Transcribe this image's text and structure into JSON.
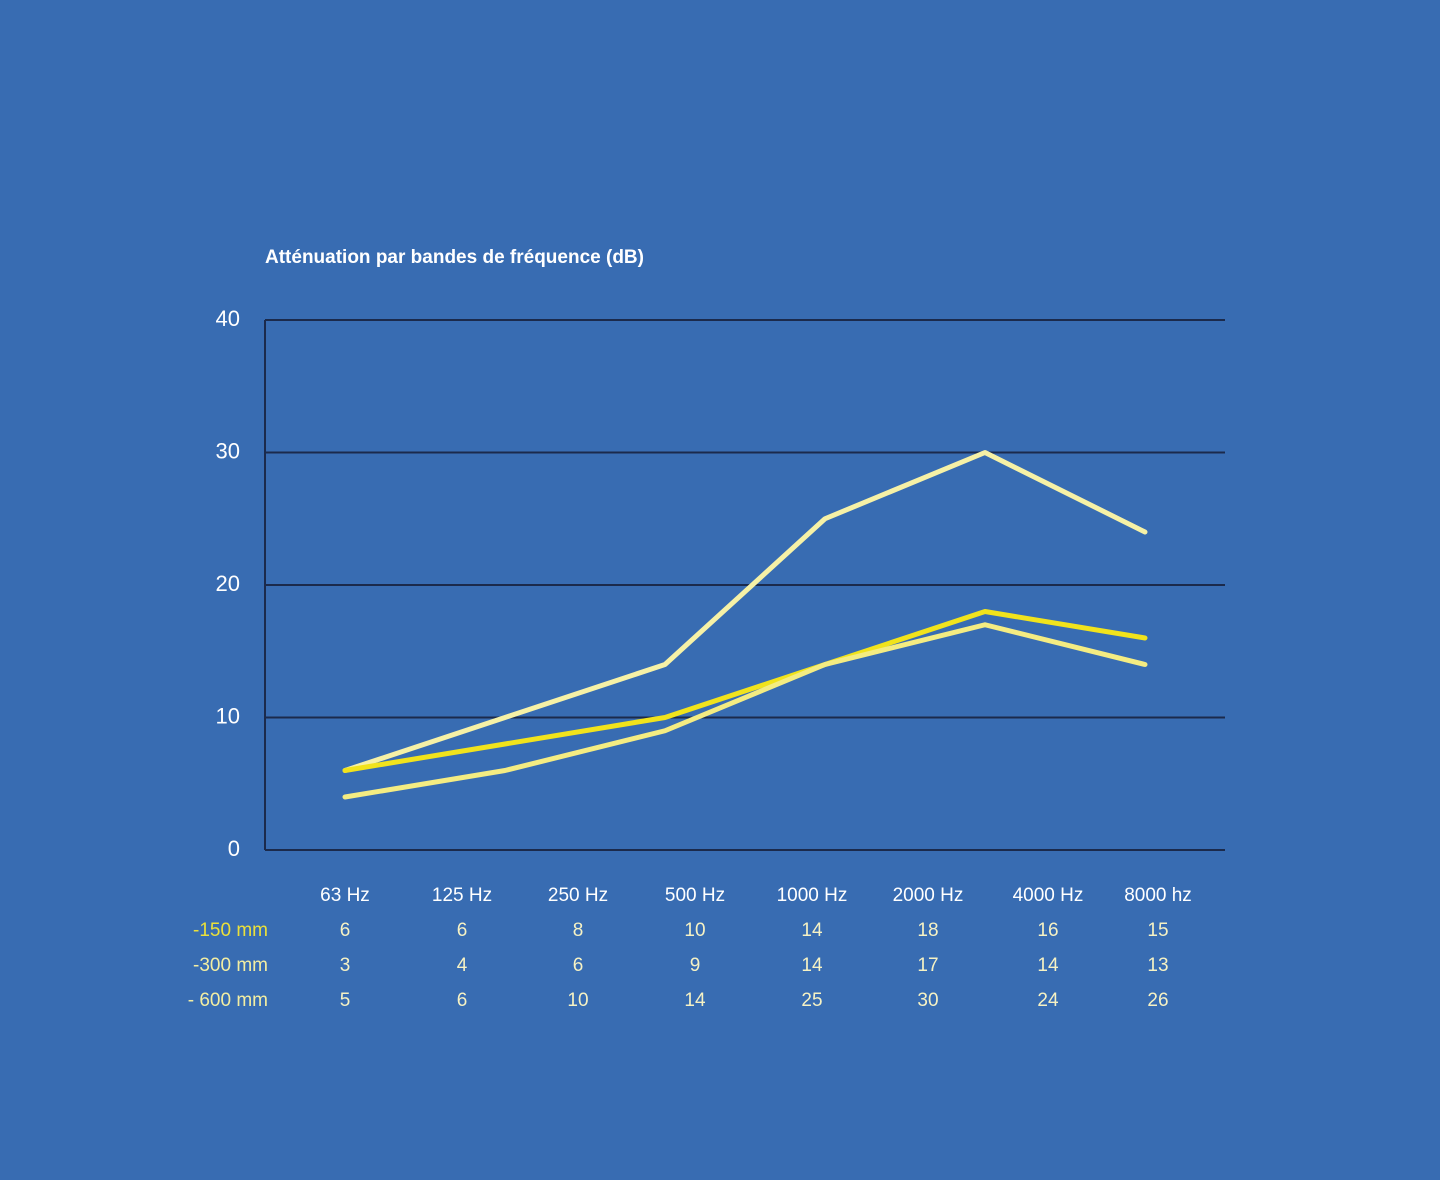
{
  "chart_data": {
    "type": "line",
    "title": "Atténuation par bandes de fréquence (dB)",
    "categories": [
      null,
      null,
      null,
      null,
      null,
      null
    ],
    "series": [
      {
        "color": "#f6f1a6",
        "values": [
          6,
          10,
          14,
          25,
          30,
          24
        ]
      },
      {
        "color": "#f1e31c",
        "values": [
          6,
          8,
          10,
          14,
          18,
          16
        ]
      },
      {
        "color": "#f4ec82",
        "values": [
          4,
          6,
          9,
          14,
          17,
          14
        ]
      }
    ],
    "ylim": [
      0,
      40
    ],
    "yticks": [
      0,
      10,
      20,
      30,
      40
    ],
    "grid": true
  },
  "table": {
    "header": [
      "63 Hz",
      "125 Hz",
      "250 Hz",
      "500 Hz",
      "1000 Hz",
      "2000 Hz",
      "4000 Hz",
      "8000 hz"
    ],
    "rows": [
      {
        "label": "-150 mm",
        "color": "#ebe03a",
        "values": [
          6,
          6,
          8,
          10,
          14,
          18,
          16,
          15
        ]
      },
      {
        "label": "-300 mm",
        "color": "#f3eea2",
        "values": [
          3,
          4,
          6,
          9,
          14,
          17,
          14,
          13
        ]
      },
      {
        "label": "- 600 mm",
        "color": "#f3eea2",
        "values": [
          5,
          6,
          10,
          14,
          25,
          30,
          24,
          26
        ]
      }
    ]
  }
}
